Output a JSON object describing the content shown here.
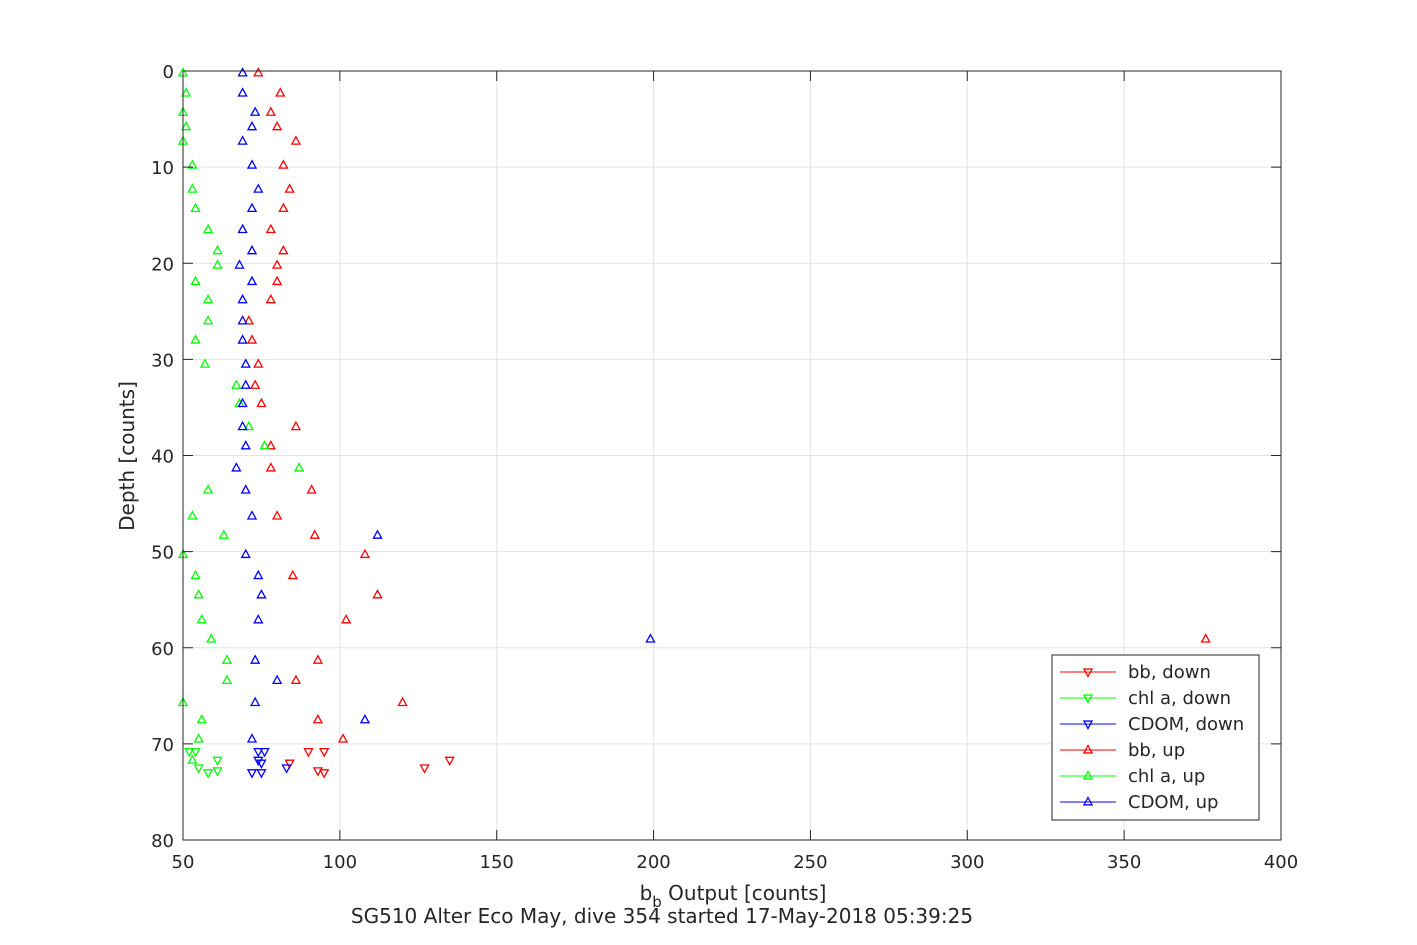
{
  "chart_data": {
    "type": "scatter",
    "title": "SG510 Alter Eco May, dive 354 started 17-May-2018 05:39:25",
    "xlabel_main": "b",
    "xlabel_sub": "b",
    "xlabel_rest": " Output [counts]",
    "ylabel": "Depth [counts]",
    "xlim": [
      50,
      400
    ],
    "ylim": [
      0,
      80
    ],
    "y_reversed": true,
    "grid": true,
    "legend_position": "bottom-right",
    "xticks": [
      50,
      100,
      150,
      200,
      250,
      300,
      350,
      400
    ],
    "yticks": [
      0,
      10,
      20,
      30,
      40,
      50,
      60,
      70,
      80
    ],
    "xtick_labels": [
      "50",
      "100",
      "150",
      "200",
      "250",
      "300",
      "350",
      "400"
    ],
    "ytick_labels": [
      "0",
      "10",
      "20",
      "30",
      "40",
      "50",
      "60",
      "70",
      "80"
    ],
    "series": [
      {
        "name": "bb, down",
        "color": "#ff0000",
        "marker": "triangle-down",
        "points": [
          [
            84,
            72.0
          ],
          [
            93,
            72.8
          ],
          [
            95,
            73.0
          ],
          [
            90,
            70.8
          ],
          [
            95,
            70.8
          ],
          [
            127,
            72.5
          ],
          [
            135,
            71.7
          ]
        ]
      },
      {
        "name": "chl a, down",
        "color": "#00ff00",
        "marker": "triangle-down",
        "points": [
          [
            52,
            70.8
          ],
          [
            54,
            70.8
          ],
          [
            55,
            72.5
          ],
          [
            58,
            73.0
          ],
          [
            61,
            72.8
          ],
          [
            61,
            71.7
          ]
        ]
      },
      {
        "name": "CDOM, down",
        "color": "#0000ff",
        "marker": "triangle-down",
        "points": [
          [
            72,
            73.0
          ],
          [
            75,
            73.0
          ],
          [
            74,
            71.7
          ],
          [
            74,
            70.8
          ],
          [
            76,
            70.8
          ],
          [
            75,
            72.0
          ],
          [
            83,
            72.5
          ]
        ]
      },
      {
        "name": "bb, up",
        "color": "#ff0000",
        "marker": "triangle-up",
        "points": [
          [
            74,
            0.2
          ],
          [
            81,
            2.3
          ],
          [
            78,
            4.3
          ],
          [
            80,
            5.8
          ],
          [
            86,
            7.3
          ],
          [
            82,
            9.8
          ],
          [
            84,
            12.3
          ],
          [
            82,
            14.3
          ],
          [
            78,
            16.5
          ],
          [
            82,
            18.7
          ],
          [
            80,
            20.2
          ],
          [
            80,
            21.9
          ],
          [
            78,
            23.8
          ],
          [
            71,
            26.0
          ],
          [
            72,
            28.0
          ],
          [
            74,
            30.5
          ],
          [
            73,
            32.7
          ],
          [
            75,
            34.6
          ],
          [
            86,
            37.0
          ],
          [
            78,
            39.0
          ],
          [
            78,
            41.3
          ],
          [
            91,
            43.6
          ],
          [
            80,
            46.3
          ],
          [
            92,
            48.3
          ],
          [
            108,
            50.3
          ],
          [
            85,
            52.5
          ],
          [
            112,
            54.5
          ],
          [
            102,
            57.1
          ],
          [
            93,
            61.3
          ],
          [
            86,
            63.4
          ],
          [
            120,
            65.7
          ],
          [
            93,
            67.5
          ],
          [
            101,
            69.5
          ],
          [
            376,
            59.1
          ]
        ]
      },
      {
        "name": "chl a, up",
        "color": "#00ff00",
        "marker": "triangle-up",
        "points": [
          [
            50,
            0.2
          ],
          [
            51,
            2.3
          ],
          [
            50,
            4.3
          ],
          [
            51,
            5.8
          ],
          [
            50,
            7.3
          ],
          [
            53,
            9.8
          ],
          [
            53,
            12.3
          ],
          [
            54,
            14.3
          ],
          [
            58,
            16.5
          ],
          [
            61,
            18.7
          ],
          [
            61,
            20.2
          ],
          [
            54,
            21.9
          ],
          [
            58,
            23.8
          ],
          [
            58,
            26.0
          ],
          [
            54,
            28.0
          ],
          [
            57,
            30.5
          ],
          [
            67,
            32.7
          ],
          [
            68,
            34.6
          ],
          [
            71,
            37.0
          ],
          [
            76,
            39.0
          ],
          [
            87,
            41.3
          ],
          [
            58,
            43.6
          ],
          [
            53,
            46.3
          ],
          [
            63,
            48.3
          ],
          [
            50,
            50.3
          ],
          [
            54,
            52.5
          ],
          [
            55,
            54.5
          ],
          [
            56,
            57.1
          ],
          [
            59,
            59.1
          ],
          [
            64,
            61.3
          ],
          [
            64,
            63.4
          ],
          [
            50,
            65.7
          ],
          [
            56,
            67.5
          ],
          [
            55,
            69.5
          ],
          [
            53,
            71.7
          ]
        ]
      },
      {
        "name": "CDOM, up",
        "color": "#0000ff",
        "marker": "triangle-up",
        "points": [
          [
            69,
            0.2
          ],
          [
            69,
            2.3
          ],
          [
            73,
            4.3
          ],
          [
            72,
            5.8
          ],
          [
            69,
            7.3
          ],
          [
            72,
            9.8
          ],
          [
            74,
            12.3
          ],
          [
            72,
            14.3
          ],
          [
            69,
            16.5
          ],
          [
            72,
            18.7
          ],
          [
            68,
            20.2
          ],
          [
            72,
            21.9
          ],
          [
            69,
            23.8
          ],
          [
            69,
            26.0
          ],
          [
            69,
            28.0
          ],
          [
            70,
            30.5
          ],
          [
            70,
            32.7
          ],
          [
            69,
            34.6
          ],
          [
            69,
            37.0
          ],
          [
            70,
            39.0
          ],
          [
            67,
            41.3
          ],
          [
            70,
            43.6
          ],
          [
            72,
            46.3
          ],
          [
            112,
            48.3
          ],
          [
            70,
            50.3
          ],
          [
            74,
            52.5
          ],
          [
            75,
            54.5
          ],
          [
            74,
            57.1
          ],
          [
            199,
            59.1
          ],
          [
            73,
            61.3
          ],
          [
            80,
            63.4
          ],
          [
            73,
            65.7
          ],
          [
            108,
            67.5
          ],
          [
            72,
            69.5
          ]
        ]
      }
    ]
  }
}
